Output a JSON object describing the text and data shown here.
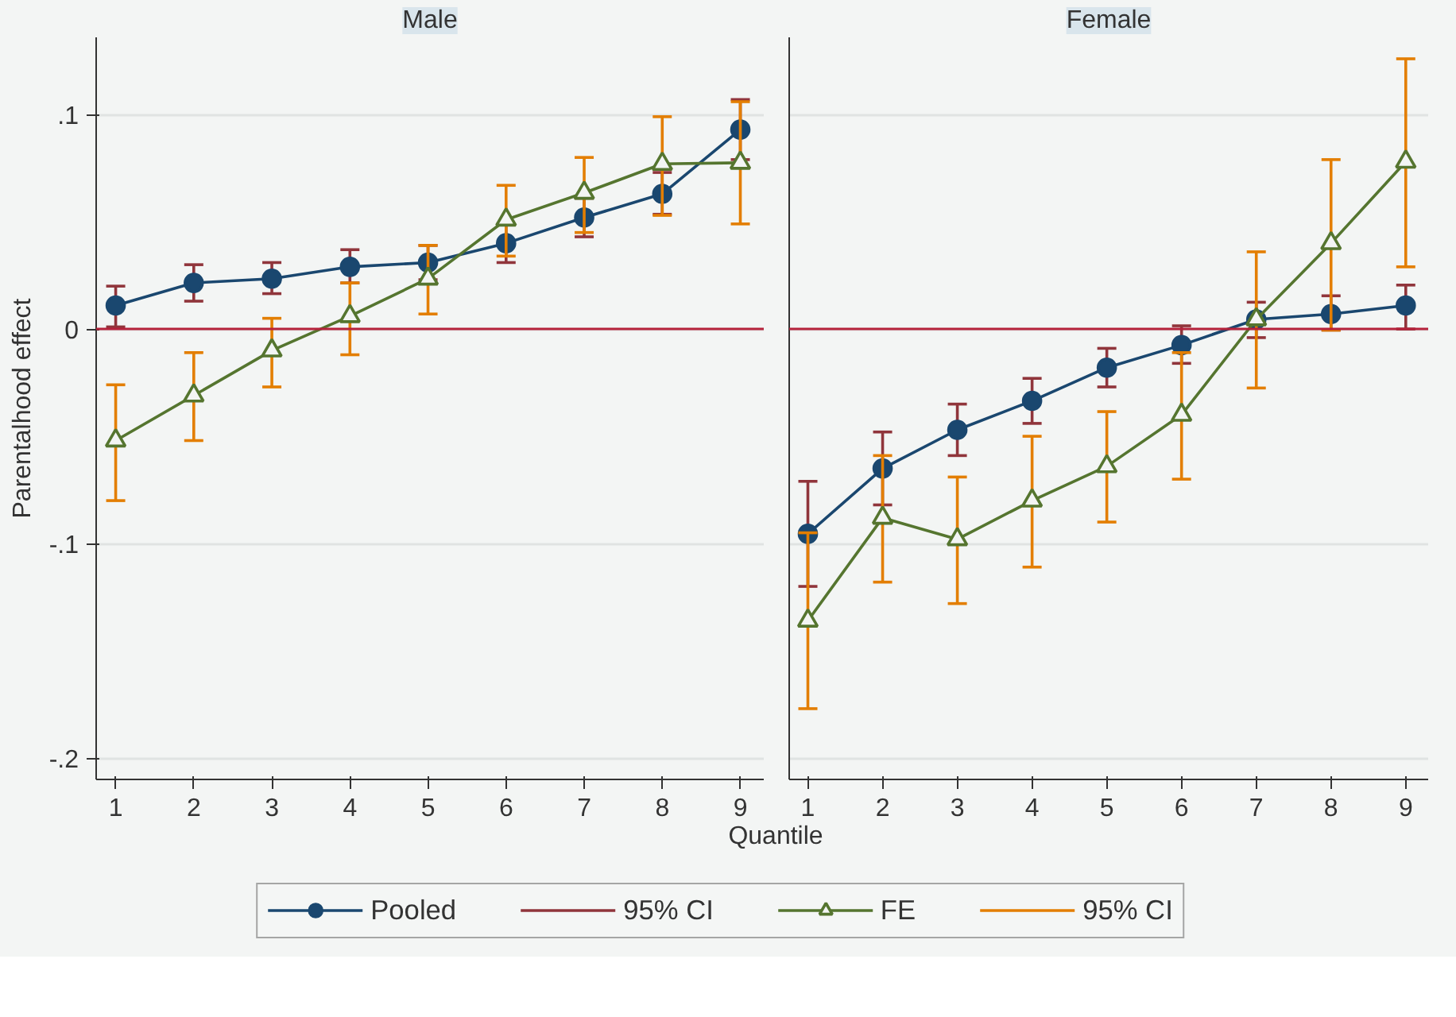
{
  "chart_data": [
    {
      "type": "line",
      "title": "Male",
      "xlabel": "Quantile",
      "ylabel": "Parentalhood effect",
      "x": [
        1,
        2,
        3,
        4,
        5,
        6,
        7,
        8,
        9
      ],
      "xlim": [
        0.75,
        9.3
      ],
      "xticks": [
        1,
        2,
        3,
        4,
        5,
        6,
        7,
        8,
        9
      ],
      "ylim": [
        -0.21,
        0.136
      ],
      "yticks": [
        {
          "value": -0.2,
          "label": "-.2"
        },
        {
          "value": -0.1,
          "label": "-.1"
        },
        0,
        {
          "value": 0.1,
          "label": ".1"
        }
      ],
      "grid": "y",
      "legend": "bottom",
      "annotations": [
        "95% CI",
        "95% CI"
      ],
      "ref_lines": [
        {
          "axis": "y",
          "value": 0,
          "color": "#b5223b"
        }
      ],
      "series": [
        {
          "name": "Pooled",
          "color": "#1a476f",
          "marker": "circle",
          "values": [
            0.011,
            0.0215,
            0.0235,
            0.029,
            0.031,
            0.04,
            0.052,
            0.063,
            0.093
          ],
          "errors": [
            [
              0.001,
              0.02
            ],
            [
              0.013,
              0.03
            ],
            [
              0.0165,
              0.031
            ],
            [
              0.0215,
              0.037
            ],
            [
              0.023,
              0.039
            ],
            [
              0.031,
              0.049
            ],
            [
              0.043,
              0.061
            ],
            [
              0.0535,
              0.073
            ],
            [
              0.079,
              0.107
            ]
          ]
        },
        {
          "name": "FE",
          "color": "#55752f",
          "marker": "triangle",
          "values": [
            -0.052,
            -0.031,
            -0.01,
            0.006,
            0.0235,
            0.051,
            0.0635,
            0.077,
            0.0775
          ],
          "errors": [
            [
              -0.08,
              -0.026
            ],
            [
              -0.052,
              -0.011
            ],
            [
              -0.027,
              0.005
            ],
            [
              -0.012,
              0.0215
            ],
            [
              0.007,
              0.039
            ],
            [
              0.034,
              0.067
            ],
            [
              0.045,
              0.08
            ],
            [
              0.053,
              0.099
            ],
            [
              0.049,
              0.106
            ]
          ]
        }
      ]
    },
    {
      "type": "line",
      "title": "Female",
      "x": [
        1,
        2,
        3,
        4,
        5,
        6,
        7,
        8,
        9
      ],
      "xlim": [
        0.75,
        9.3
      ],
      "xticks": [
        1,
        2,
        3,
        4,
        5,
        6,
        7,
        8,
        9
      ],
      "ylim": [
        -0.21,
        0.136
      ],
      "yticks": [
        {
          "value": -0.2,
          "label": null
        },
        {
          "value": -0.1,
          "label": null
        },
        {
          "value": 0,
          "label": null
        },
        {
          "value": 0.1,
          "label": null
        }
      ],
      "tick_labels": "x",
      "grid": "y",
      "ref_lines": [
        {
          "axis": "y",
          "value": 0,
          "color": "#b5223b"
        }
      ],
      "series": [
        {
          "color": "#1a476f",
          "marker": "circle",
          "values": [
            -0.0955,
            -0.065,
            -0.047,
            -0.0335,
            -0.018,
            -0.0075,
            0.0045,
            0.007,
            0.011
          ],
          "errors": [
            [
              -0.12,
              -0.071
            ],
            [
              -0.082,
              -0.048
            ],
            [
              -0.059,
              -0.035
            ],
            [
              -0.044,
              -0.023
            ],
            [
              -0.027,
              -0.009
            ],
            [
              -0.016,
              0.0015
            ],
            [
              -0.004,
              0.0125
            ],
            [
              -0.0005,
              0.0155
            ],
            [
              0.0,
              0.0205
            ]
          ]
        },
        {
          "color": "#55752f",
          "marker": "triangle",
          "values": [
            -0.136,
            -0.088,
            -0.098,
            -0.08,
            -0.064,
            -0.04,
            0.0045,
            0.04,
            0.078
          ],
          "errors": [
            [
              -0.177,
              -0.095
            ],
            [
              -0.118,
              -0.059
            ],
            [
              -0.128,
              -0.069
            ],
            [
              -0.111,
              -0.05
            ],
            [
              -0.09,
              -0.0385
            ],
            [
              -0.07,
              -0.011
            ],
            [
              -0.0275,
              0.036
            ],
            [
              -0.0005,
              0.079
            ],
            [
              0.029,
              0.126
            ]
          ]
        }
      ]
    }
  ]
}
